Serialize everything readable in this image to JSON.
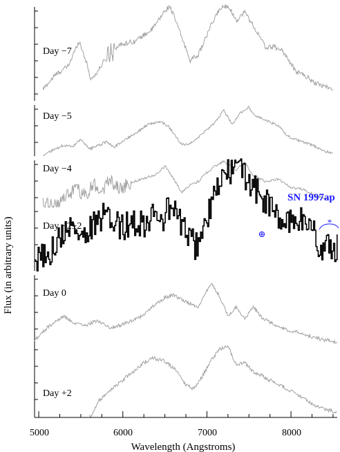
{
  "colors": {
    "highlight": "#1a1aff",
    "faint": "#a0a0a0",
    "dark": "#000000"
  },
  "chart_data": {
    "type": "line",
    "xlabel": "Wavelength (Angstroms)",
    "ylabel": "Flux (in arbitrary units)",
    "xlim": [
      4950,
      8550
    ],
    "xticks": [
      "5000",
      "6000",
      "7000",
      "8000"
    ],
    "grid": false,
    "annotations": {
      "object": "SN 1997ap",
      "telluric_marker": "⊕",
      "star_marker": "*"
    },
    "series": [
      {
        "name": "Day −7",
        "style": "faint",
        "x_start": 5050,
        "x_end": 8500,
        "ylim": [
          0,
          1
        ],
        "points": [
          [
            5050,
            0.12
          ],
          [
            5200,
            0.27
          ],
          [
            5350,
            0.36
          ],
          [
            5480,
            0.62
          ],
          [
            5560,
            0.42
          ],
          [
            5620,
            0.22
          ],
          [
            5700,
            0.3
          ],
          [
            5850,
            0.52
          ],
          [
            6000,
            0.59
          ],
          [
            6150,
            0.62
          ],
          [
            6350,
            0.74
          ],
          [
            6500,
            0.93
          ],
          [
            6560,
            0.98
          ],
          [
            6650,
            0.78
          ],
          [
            6800,
            0.42
          ],
          [
            6900,
            0.48
          ],
          [
            7050,
            0.78
          ],
          [
            7150,
            0.95
          ],
          [
            7250,
            0.99
          ],
          [
            7350,
            0.83
          ],
          [
            7450,
            0.92
          ],
          [
            7550,
            0.78
          ],
          [
            7700,
            0.55
          ],
          [
            7800,
            0.56
          ],
          [
            7900,
            0.52
          ],
          [
            8050,
            0.31
          ],
          [
            8150,
            0.27
          ],
          [
            8300,
            0.18
          ],
          [
            8450,
            0.14
          ],
          [
            8500,
            0.11
          ]
        ]
      },
      {
        "name": "Day −5",
        "style": "faint",
        "x_start": 5050,
        "x_end": 8500,
        "ylim": [
          0,
          1
        ],
        "points": [
          [
            5050,
            0.02
          ],
          [
            5150,
            0.1
          ],
          [
            5300,
            0.22
          ],
          [
            5400,
            0.18
          ],
          [
            5500,
            0.32
          ],
          [
            5600,
            0.14
          ],
          [
            5700,
            0.2
          ],
          [
            5800,
            0.28
          ],
          [
            5900,
            0.18
          ],
          [
            6000,
            0.3
          ],
          [
            6150,
            0.45
          ],
          [
            6300,
            0.62
          ],
          [
            6450,
            0.68
          ],
          [
            6550,
            0.57
          ],
          [
            6700,
            0.22
          ],
          [
            6800,
            0.25
          ],
          [
            6950,
            0.44
          ],
          [
            7100,
            0.66
          ],
          [
            7200,
            0.9
          ],
          [
            7300,
            0.62
          ],
          [
            7400,
            0.85
          ],
          [
            7500,
            0.96
          ],
          [
            7550,
            0.82
          ],
          [
            7700,
            0.7
          ],
          [
            7850,
            0.6
          ],
          [
            7950,
            0.4
          ],
          [
            8100,
            0.3
          ],
          [
            8250,
            0.22
          ],
          [
            8400,
            0.1
          ],
          [
            8500,
            0.05
          ]
        ]
      },
      {
        "name": "Day −4",
        "style": "faint",
        "x_start": 5050,
        "x_end": 8450,
        "ylim": [
          0,
          1
        ],
        "points": [
          [
            5150,
            0.05
          ],
          [
            5300,
            0.18
          ],
          [
            5450,
            0.4
          ],
          [
            5550,
            0.25
          ],
          [
            5650,
            0.5
          ],
          [
            5750,
            0.35
          ],
          [
            5850,
            0.6
          ],
          [
            5950,
            0.4
          ],
          [
            6100,
            0.52
          ],
          [
            6250,
            0.62
          ],
          [
            6400,
            0.7
          ],
          [
            6500,
            0.88
          ],
          [
            6600,
            0.62
          ],
          [
            6700,
            0.32
          ],
          [
            6800,
            0.48
          ],
          [
            6900,
            0.55
          ],
          [
            7000,
            0.75
          ],
          [
            7100,
            0.88
          ],
          [
            7200,
            0.98
          ],
          [
            7350,
            0.8
          ],
          [
            7450,
            0.96
          ],
          [
            7550,
            0.68
          ],
          [
            7700,
            0.55
          ],
          [
            7850,
            0.6
          ],
          [
            8000,
            0.42
          ],
          [
            8150,
            0.38
          ],
          [
            8300,
            0.24
          ],
          [
            8450,
            0.18
          ]
        ]
      },
      {
        "name": "Day −2±2",
        "style": "dark",
        "x_start": 4950,
        "x_end": 8550,
        "ylim": [
          0,
          1
        ],
        "points": [
          [
            4950,
            0.08
          ],
          [
            5050,
            0.12
          ],
          [
            5150,
            0.2
          ],
          [
            5250,
            0.3
          ],
          [
            5350,
            0.4
          ],
          [
            5450,
            0.36
          ],
          [
            5550,
            0.31
          ],
          [
            5650,
            0.4
          ],
          [
            5750,
            0.48
          ],
          [
            5850,
            0.45
          ],
          [
            5950,
            0.4
          ],
          [
            6050,
            0.41
          ],
          [
            6150,
            0.44
          ],
          [
            6250,
            0.43
          ],
          [
            6350,
            0.5
          ],
          [
            6450,
            0.42
          ],
          [
            6550,
            0.58
          ],
          [
            6650,
            0.48
          ],
          [
            6750,
            0.34
          ],
          [
            6850,
            0.22
          ],
          [
            6950,
            0.35
          ],
          [
            7050,
            0.58
          ],
          [
            7150,
            0.8
          ],
          [
            7250,
            0.88
          ],
          [
            7350,
            0.93
          ],
          [
            7450,
            0.86
          ],
          [
            7550,
            0.74
          ],
          [
            7650,
            0.65
          ],
          [
            7750,
            0.58
          ],
          [
            7850,
            0.45
          ],
          [
            7950,
            0.42
          ],
          [
            8050,
            0.48
          ],
          [
            8150,
            0.44
          ],
          [
            8250,
            0.4
          ],
          [
            8300,
            0.28
          ],
          [
            8350,
            0.18
          ],
          [
            8450,
            0.22
          ],
          [
            8550,
            0.2
          ]
        ]
      },
      {
        "name": "Day 0",
        "style": "faint",
        "x_start": 4950,
        "x_end": 8550,
        "ylim": [
          0,
          1
        ],
        "points": [
          [
            4950,
            0.08
          ],
          [
            5100,
            0.25
          ],
          [
            5300,
            0.42
          ],
          [
            5400,
            0.32
          ],
          [
            5550,
            0.28
          ],
          [
            5700,
            0.36
          ],
          [
            5850,
            0.25
          ],
          [
            6000,
            0.3
          ],
          [
            6200,
            0.4
          ],
          [
            6350,
            0.55
          ],
          [
            6500,
            0.68
          ],
          [
            6600,
            0.72
          ],
          [
            6750,
            0.62
          ],
          [
            6900,
            0.55
          ],
          [
            7000,
            0.78
          ],
          [
            7050,
            0.88
          ],
          [
            7150,
            0.7
          ],
          [
            7250,
            0.42
          ],
          [
            7350,
            0.55
          ],
          [
            7450,
            0.38
          ],
          [
            7550,
            0.55
          ],
          [
            7650,
            0.4
          ],
          [
            7800,
            0.3
          ],
          [
            7950,
            0.22
          ],
          [
            8100,
            0.18
          ],
          [
            8250,
            0.12
          ],
          [
            8400,
            0.08
          ],
          [
            8550,
            0.05
          ]
        ]
      },
      {
        "name": "Day +2",
        "style": "faint",
        "x_start": 5600,
        "x_end": 8550,
        "ylim": [
          0,
          1
        ],
        "points": [
          [
            5620,
            0.02
          ],
          [
            5700,
            0.2
          ],
          [
            5800,
            0.32
          ],
          [
            5950,
            0.45
          ],
          [
            6100,
            0.58
          ],
          [
            6250,
            0.72
          ],
          [
            6350,
            0.78
          ],
          [
            6500,
            0.74
          ],
          [
            6650,
            0.6
          ],
          [
            6750,
            0.42
          ],
          [
            6850,
            0.38
          ],
          [
            6950,
            0.55
          ],
          [
            7050,
            0.75
          ],
          [
            7150,
            0.9
          ],
          [
            7250,
            0.94
          ],
          [
            7350,
            0.68
          ],
          [
            7450,
            0.72
          ],
          [
            7550,
            0.6
          ],
          [
            7650,
            0.55
          ],
          [
            7800,
            0.46
          ],
          [
            7950,
            0.38
          ],
          [
            8100,
            0.28
          ],
          [
            8300,
            0.15
          ],
          [
            8500,
            0.08
          ]
        ]
      }
    ]
  }
}
